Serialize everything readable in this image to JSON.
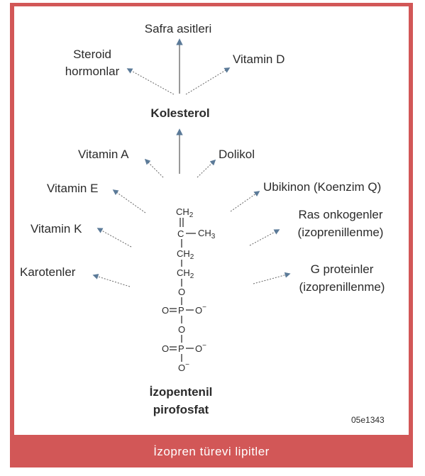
{
  "caption": "İzopren türevi lipitler",
  "figure_code": "05e1343",
  "center": {
    "cholesterol": "Kolesterol",
    "precursor_line1": "İzopentenil",
    "precursor_line2": "pirofosfat"
  },
  "cholesterol_products": {
    "bile_acids": "Safra asitleri",
    "steroid_line1": "Steroid",
    "steroid_line2": "hormonlar",
    "vitamin_d": "Vitamin D"
  },
  "left_products": {
    "vitamin_a": "Vitamin A",
    "vitamin_e": "Vitamin E",
    "vitamin_k": "Vitamin K",
    "carotenoids": "Karotenler"
  },
  "right_products": {
    "dolichol": "Dolikol",
    "ubiquinone": "Ubikinon (Koenzim Q)",
    "ras_line1": "Ras onkogenler",
    "ras_line2": "(izoprenillenme)",
    "gprot_line1": "G proteinler",
    "gprot_line2": "(izoprenillenme)"
  },
  "structure": {
    "ch2_top": "CH",
    "ch2_top_sub": "2",
    "c_center": "C",
    "ch3": "CH",
    "ch3_sub": "3",
    "ch2_a": "CH",
    "ch2_a_sub": "2",
    "ch2_b": "CH",
    "ch2_b_sub": "2",
    "o1": "O",
    "p1_left": "O",
    "p1": "P",
    "p1_right": "O",
    "p1_charge": "−",
    "o2": "O",
    "p2_left": "O",
    "p2": "P",
    "p2_right": "O",
    "p2_charge": "−",
    "o_bottom": "O",
    "o_bottom_charge": "−"
  },
  "colors": {
    "frame": "#d25757",
    "arrow": "#5b7a98"
  }
}
